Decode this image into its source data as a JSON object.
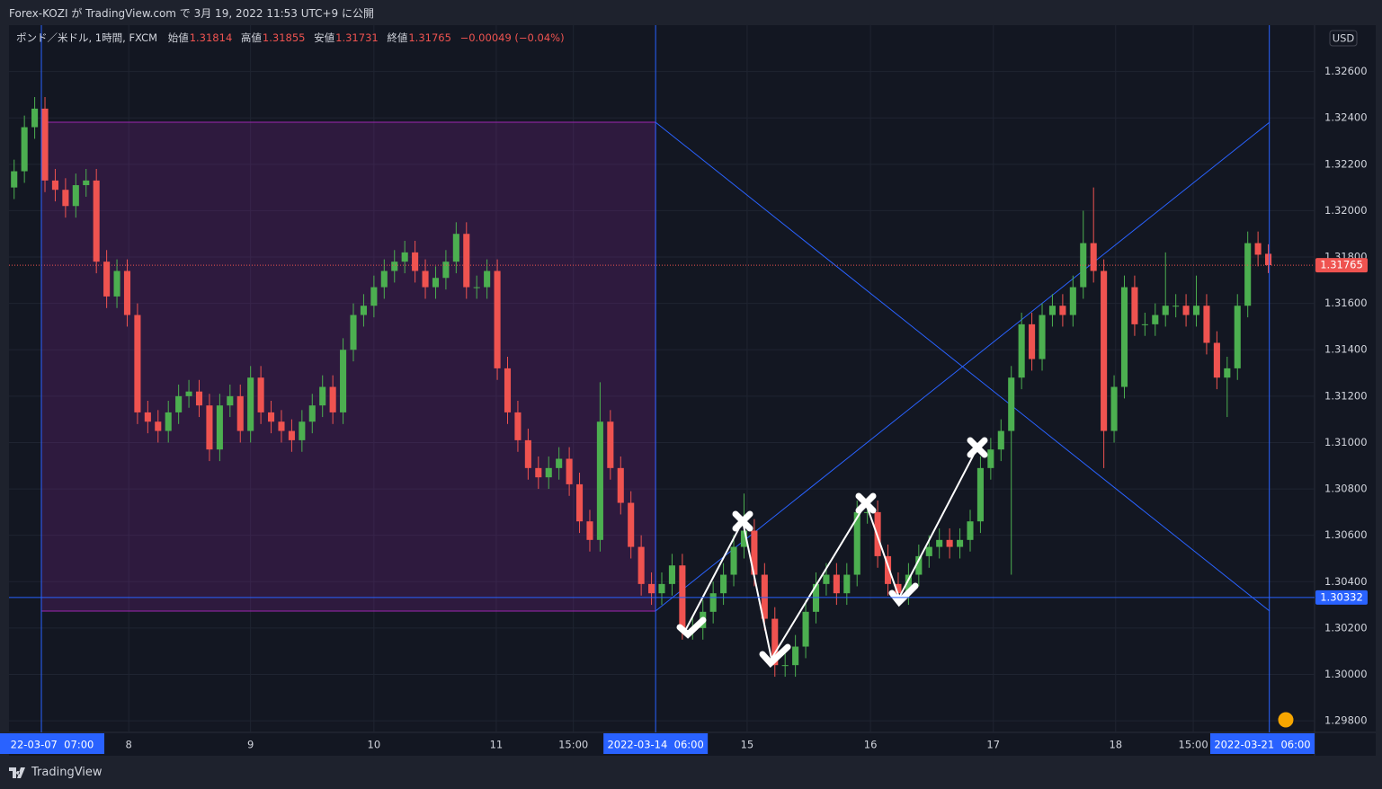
{
  "header": {
    "published": "Forex-KOZI が TradingView.com で 3月 19, 2022 11:53 UTC+9 に公開"
  },
  "footer": {
    "brand": "TradingView"
  },
  "chart_data": {
    "type": "candlestick",
    "symbol": "ポンド／米ドル, 1時間, FXCM",
    "ohlc_legend": [
      {
        "label": "始値",
        "value": 1.31814
      },
      {
        "label": "高値",
        "value": 1.31855
      },
      {
        "label": "安値",
        "value": 1.31731
      },
      {
        "label": "終値",
        "value": 1.31765
      }
    ],
    "change": "−0.00049 (−0.04%)",
    "currency": "USD",
    "up_color": "#4caf50",
    "down_color": "#ef5350",
    "grid": true,
    "x": [
      1,
      3,
      5,
      7,
      9,
      11,
      13,
      15,
      17,
      19,
      21,
      23,
      25,
      27,
      29,
      31,
      33,
      35,
      37,
      39,
      41,
      43,
      45,
      47,
      49,
      51,
      53,
      55,
      57,
      59,
      61,
      63,
      65,
      67,
      69,
      71,
      73,
      75,
      77,
      79,
      81,
      83,
      85,
      87,
      89,
      91,
      93,
      95,
      97,
      99,
      101,
      103,
      105,
      107,
      109,
      111,
      113,
      115,
      117,
      119,
      121,
      123,
      125,
      127,
      129,
      131,
      133,
      135,
      137,
      139,
      141,
      143,
      145,
      147,
      149,
      151,
      153,
      155,
      157,
      159,
      161,
      163,
      165,
      167,
      169,
      171,
      173,
      175,
      177,
      179,
      181,
      183,
      185,
      187,
      189,
      191,
      193,
      195,
      197,
      199,
      201,
      203,
      205,
      207,
      209,
      211,
      213,
      215,
      217,
      219,
      221,
      223,
      225,
      227,
      229,
      231,
      233,
      235,
      237,
      239,
      241,
      243,
      245
    ],
    "open": [
      1.321,
      1.3217,
      1.3236,
      1.3244,
      1.3213,
      1.3209,
      1.3202,
      1.3211,
      1.3213,
      1.3178,
      1.3163,
      1.3174,
      1.3155,
      1.3113,
      1.3109,
      1.3105,
      1.3113,
      1.312,
      1.3122,
      1.3116,
      1.3097,
      1.3116,
      1.312,
      1.3105,
      1.3128,
      1.3113,
      1.3109,
      1.3105,
      1.3101,
      1.3109,
      1.3116,
      1.3124,
      1.3113,
      1.314,
      1.3155,
      1.3159,
      1.3167,
      1.3174,
      1.3178,
      1.3182,
      1.3174,
      1.3167,
      1.3171,
      1.3178,
      1.319,
      1.3167,
      1.3167,
      1.3174,
      1.3132,
      1.3113,
      1.3101,
      1.3089,
      1.3085,
      1.3089,
      1.3093,
      1.3082,
      1.3066,
      1.3058,
      1.3109,
      1.3089,
      1.3074,
      1.3055,
      1.3039,
      1.3035,
      1.3039,
      1.3047,
      1.302,
      1.302,
      1.3027,
      1.3035,
      1.3043,
      1.3055,
      1.3062,
      1.3043,
      1.3024,
      1.3004,
      1.3004,
      1.3012,
      1.3027,
      1.3039,
      1.3043,
      1.3035,
      1.3043,
      1.307,
      1.307,
      1.3051,
      1.3039,
      1.3035,
      1.3043,
      1.3051,
      1.3055,
      1.3058,
      1.3055,
      1.3058,
      1.3066,
      1.3089,
      1.3097,
      1.3105,
      1.3128,
      1.3151,
      1.3136,
      1.3155,
      1.3159,
      1.3155,
      1.3167,
      1.3186,
      1.3174,
      1.3105,
      1.3124,
      1.3167,
      1.3151,
      1.3151,
      1.3155,
      1.3159,
      1.3159,
      1.3155,
      1.3159,
      1.3143,
      1.3128,
      1.3132,
      1.3159,
      1.3186,
      1.31814
    ],
    "high": [
      1.3222,
      1.3241,
      1.3249,
      1.3249,
      1.3218,
      1.3214,
      1.3216,
      1.3218,
      1.3218,
      1.3183,
      1.3179,
      1.3179,
      1.316,
      1.3118,
      1.3114,
      1.3118,
      1.3125,
      1.3127,
      1.3127,
      1.3121,
      1.3121,
      1.3125,
      1.3125,
      1.3133,
      1.3133,
      1.3118,
      1.3114,
      1.311,
      1.3114,
      1.3121,
      1.3129,
      1.3129,
      1.3145,
      1.316,
      1.3164,
      1.3172,
      1.3179,
      1.3183,
      1.3187,
      1.3187,
      1.3179,
      1.3176,
      1.3183,
      1.3195,
      1.3195,
      1.3172,
      1.3179,
      1.3179,
      1.3137,
      1.3118,
      1.3106,
      1.3094,
      1.3094,
      1.3098,
      1.3098,
      1.3087,
      1.3071,
      1.3126,
      1.3114,
      1.3094,
      1.3079,
      1.306,
      1.3044,
      1.3044,
      1.3052,
      1.3052,
      1.3025,
      1.3032,
      1.304,
      1.3048,
      1.306,
      1.3078,
      1.3067,
      1.3048,
      1.3029,
      1.3009,
      1.3017,
      1.3032,
      1.3044,
      1.3048,
      1.3048,
      1.3048,
      1.3075,
      1.3075,
      1.3075,
      1.3056,
      1.3044,
      1.3048,
      1.3056,
      1.306,
      1.3063,
      1.3063,
      1.3063,
      1.3071,
      1.3094,
      1.3102,
      1.311,
      1.3133,
      1.3156,
      1.3156,
      1.316,
      1.3164,
      1.3164,
      1.3172,
      1.32,
      1.321,
      1.3179,
      1.3129,
      1.3172,
      1.3172,
      1.3156,
      1.316,
      1.3182,
      1.3164,
      1.3164,
      1.3172,
      1.3164,
      1.3148,
      1.3137,
      1.3164,
      1.3191,
      1.3191,
      1.31855
    ],
    "low": [
      1.3205,
      1.3212,
      1.3231,
      1.3208,
      1.3204,
      1.3197,
      1.3197,
      1.3206,
      1.3173,
      1.3158,
      1.3158,
      1.315,
      1.3108,
      1.3104,
      1.31,
      1.31,
      1.3108,
      1.3115,
      1.3111,
      1.3092,
      1.3092,
      1.3111,
      1.31,
      1.31,
      1.3108,
      1.3104,
      1.31,
      1.3096,
      1.3096,
      1.3104,
      1.3111,
      1.3108,
      1.3108,
      1.3135,
      1.315,
      1.3154,
      1.3162,
      1.3169,
      1.3173,
      1.3169,
      1.3162,
      1.3162,
      1.3166,
      1.3173,
      1.3162,
      1.3162,
      1.3162,
      1.3127,
      1.3108,
      1.3096,
      1.3084,
      1.308,
      1.308,
      1.3084,
      1.3077,
      1.3061,
      1.3053,
      1.3053,
      1.3084,
      1.3069,
      1.305,
      1.3034,
      1.303,
      1.303,
      1.3034,
      1.3015,
      1.3015,
      1.3015,
      1.3022,
      1.303,
      1.3038,
      1.305,
      1.3038,
      1.3019,
      1.2999,
      1.2999,
      1.2999,
      1.3007,
      1.3022,
      1.3034,
      1.303,
      1.303,
      1.3038,
      1.3065,
      1.3046,
      1.3034,
      1.303,
      1.303,
      1.3038,
      1.3046,
      1.305,
      1.305,
      1.305,
      1.3053,
      1.3061,
      1.3084,
      1.3092,
      1.3043,
      1.3123,
      1.3131,
      1.3131,
      1.315,
      1.315,
      1.315,
      1.3162,
      1.3169,
      1.3089,
      1.31,
      1.3119,
      1.3146,
      1.3146,
      1.3146,
      1.315,
      1.3154,
      1.315,
      1.315,
      1.3138,
      1.3123,
      1.3111,
      1.3127,
      1.3154,
      1.3176,
      1.31731
    ],
    "close": [
      1.3217,
      1.3236,
      1.3244,
      1.3213,
      1.3209,
      1.3202,
      1.3211,
      1.3213,
      1.3178,
      1.3163,
      1.3174,
      1.3155,
      1.3113,
      1.3109,
      1.3105,
      1.3113,
      1.312,
      1.3122,
      1.3116,
      1.3097,
      1.3116,
      1.312,
      1.3105,
      1.3128,
      1.3113,
      1.3109,
      1.3105,
      1.3101,
      1.3109,
      1.3116,
      1.3124,
      1.3113,
      1.314,
      1.3155,
      1.3159,
      1.3167,
      1.3174,
      1.3178,
      1.3182,
      1.3174,
      1.3167,
      1.3171,
      1.3178,
      1.319,
      1.3167,
      1.3167,
      1.3174,
      1.3132,
      1.3113,
      1.3101,
      1.3089,
      1.3085,
      1.3089,
      1.3093,
      1.3082,
      1.3066,
      1.3058,
      1.3109,
      1.3089,
      1.3074,
      1.3055,
      1.3039,
      1.3035,
      1.3039,
      1.3047,
      1.302,
      1.302,
      1.3027,
      1.3035,
      1.3043,
      1.3055,
      1.3062,
      1.3043,
      1.3024,
      1.3004,
      1.3004,
      1.3012,
      1.3027,
      1.3039,
      1.3043,
      1.3035,
      1.3043,
      1.307,
      1.307,
      1.3051,
      1.3039,
      1.3035,
      1.3043,
      1.3051,
      1.3055,
      1.3058,
      1.3055,
      1.3058,
      1.3066,
      1.3089,
      1.3097,
      1.3105,
      1.3128,
      1.3151,
      1.3136,
      1.3155,
      1.3159,
      1.3155,
      1.3167,
      1.3186,
      1.3174,
      1.3105,
      1.3124,
      1.3167,
      1.3151,
      1.3151,
      1.3155,
      1.3159,
      1.3159,
      1.3155,
      1.3159,
      1.3143,
      1.3128,
      1.3132,
      1.3159,
      1.3186,
      1.3181,
      1.31765
    ],
    "xlim": [
      0,
      254
    ],
    "ylim": [
      1.2975,
      1.328
    ],
    "xticks": [
      {
        "value": 23.3,
        "label": "8"
      },
      {
        "value": 47,
        "label": "9"
      },
      {
        "value": 71,
        "label": "10"
      },
      {
        "value": 94.8,
        "label": "11"
      },
      {
        "value": 109.8,
        "label": "15:00"
      },
      {
        "value": 143.6,
        "label": "15"
      },
      {
        "value": 167.6,
        "label": "16"
      },
      {
        "value": 191.5,
        "label": "17"
      },
      {
        "value": 215.3,
        "label": "18"
      },
      {
        "value": 230.4,
        "label": "15:00"
      }
    ],
    "yticks": [
      {
        "value": 1.298,
        "label": "1.29800"
      },
      {
        "value": 1.3,
        "label": "1.30000"
      },
      {
        "value": 1.302,
        "label": "1.30200"
      },
      {
        "value": 1.304,
        "label": "1.30400"
      },
      {
        "value": 1.306,
        "label": "1.30600"
      },
      {
        "value": 1.308,
        "label": "1.30800"
      },
      {
        "value": 1.31,
        "label": "1.31000"
      },
      {
        "value": 1.312,
        "label": "1.31200"
      },
      {
        "value": 1.314,
        "label": "1.31400"
      },
      {
        "value": 1.316,
        "label": "1.31600"
      },
      {
        "value": 1.318,
        "label": "1.31800"
      },
      {
        "value": 1.32,
        "label": "1.32000"
      },
      {
        "value": 1.322,
        "label": "1.32200"
      },
      {
        "value": 1.324,
        "label": "1.32400"
      },
      {
        "value": 1.326,
        "label": "1.32600"
      }
    ],
    "markers": [
      {
        "value": 6.3,
        "label": "22-03-07  07:00"
      },
      {
        "value": 125.8,
        "label": "2022-03-14  06:00"
      },
      {
        "value": 245.2,
        "label": "2022-03-21  06:00"
      }
    ],
    "price_lines": [
      {
        "value": 1.30332,
        "color": "#2962ff"
      },
      {
        "value": 1.31765,
        "color": "#ef5350",
        "dashed": true
      }
    ]
  }
}
